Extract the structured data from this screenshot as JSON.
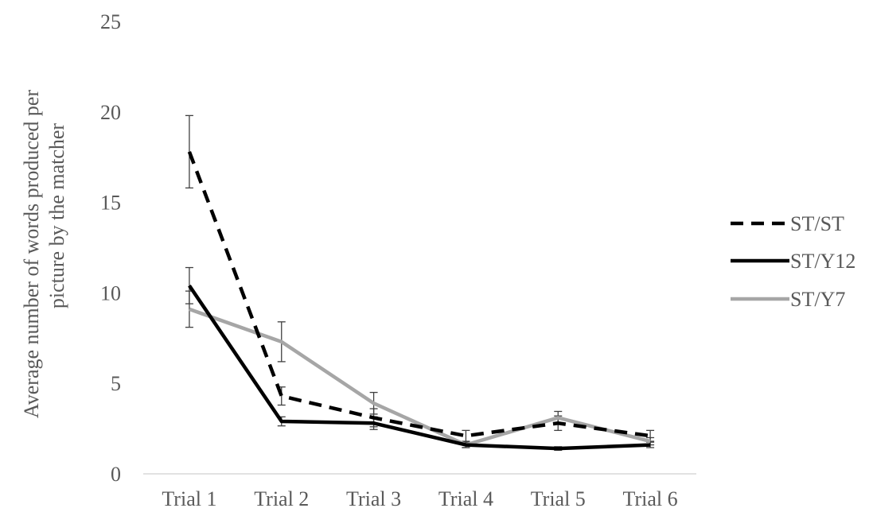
{
  "chart_data": {
    "type": "line",
    "title": "",
    "xlabel": "",
    "ylabel": "Average number of words produced per picture by the matcher",
    "ylabel_lines": [
      "Average number of words produced per",
      "picture by the matcher"
    ],
    "categories": [
      "Trial 1",
      "Trial 2",
      "Trial 3",
      "Trial 4",
      "Trial 5",
      "Trial 6"
    ],
    "ylim": [
      0,
      25
    ],
    "yticks": [
      "0",
      "5",
      "10",
      "15",
      "20",
      "25"
    ],
    "grid": false,
    "legend_position": "right",
    "series": [
      {
        "name": "ST/ST",
        "style": "dashed",
        "color": "#000000",
        "values": [
          17.8,
          4.3,
          3.1,
          2.1,
          2.8,
          2.1
        ],
        "error": [
          2.0,
          0.5,
          0.5,
          0.3,
          0.4,
          0.3
        ]
      },
      {
        "name": "ST/Y12",
        "style": "solid",
        "color": "#000000",
        "values": [
          10.4,
          2.9,
          2.8,
          1.6,
          1.4,
          1.6
        ],
        "error": [
          1.0,
          0.25,
          0.35,
          0.15,
          0.1,
          0.15
        ]
      },
      {
        "name": "ST/Y7",
        "style": "solid",
        "color": "#a6a6a6",
        "values": [
          9.1,
          7.3,
          3.9,
          1.6,
          3.1,
          1.8
        ],
        "error": [
          1.0,
          1.1,
          0.6,
          0.15,
          0.35,
          0.2
        ]
      }
    ]
  }
}
